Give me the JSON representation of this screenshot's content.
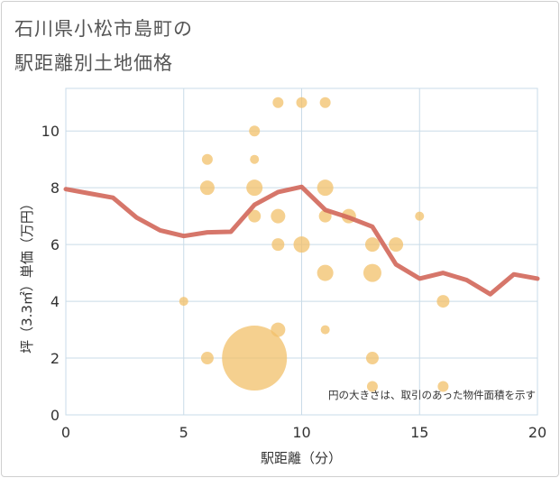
{
  "page": {
    "title_line1": "石川県小松市島町の",
    "title_line2": "駅距離別土地価格"
  },
  "chart_data": {
    "type": "scatter",
    "xlabel": "駅距離（分）",
    "ylabel": "坪（3.3㎡）単価（万円）",
    "note": "円の大きさは、取引のあった物件面積を示す",
    "xlim": [
      0,
      20
    ],
    "ylim": [
      0,
      11.5
    ],
    "x_ticks": [
      0,
      5,
      10,
      15,
      20
    ],
    "y_ticks": [
      0,
      2,
      4,
      6,
      8,
      10
    ],
    "grid": true,
    "colors": {
      "bubble": "#f2c06a",
      "line": "#d2675a",
      "grid": "#c9dbe8"
    },
    "bubbles": [
      {
        "x": 5,
        "y": 4.0,
        "size": 5
      },
      {
        "x": 6,
        "y": 9.0,
        "size": 6
      },
      {
        "x": 6,
        "y": 8.0,
        "size": 8
      },
      {
        "x": 6,
        "y": 2.0,
        "size": 7
      },
      {
        "x": 8,
        "y": 10.0,
        "size": 6
      },
      {
        "x": 8,
        "y": 9.0,
        "size": 5
      },
      {
        "x": 8,
        "y": 8.0,
        "size": 9
      },
      {
        "x": 8,
        "y": 7.0,
        "size": 7
      },
      {
        "x": 8,
        "y": 2.0,
        "size": 36
      },
      {
        "x": 9,
        "y": 11.0,
        "size": 6
      },
      {
        "x": 9,
        "y": 7.0,
        "size": 8
      },
      {
        "x": 9,
        "y": 6.0,
        "size": 7
      },
      {
        "x": 9,
        "y": 3.0,
        "size": 8
      },
      {
        "x": 10,
        "y": 11.0,
        "size": 6
      },
      {
        "x": 10,
        "y": 6.0,
        "size": 9
      },
      {
        "x": 11,
        "y": 11.0,
        "size": 6
      },
      {
        "x": 11,
        "y": 8.0,
        "size": 9
      },
      {
        "x": 11,
        "y": 7.0,
        "size": 7
      },
      {
        "x": 11,
        "y": 5.0,
        "size": 9
      },
      {
        "x": 11,
        "y": 3.0,
        "size": 5
      },
      {
        "x": 12,
        "y": 7.0,
        "size": 8
      },
      {
        "x": 13,
        "y": 6.0,
        "size": 8
      },
      {
        "x": 13,
        "y": 5.0,
        "size": 10
      },
      {
        "x": 13,
        "y": 2.0,
        "size": 7
      },
      {
        "x": 13,
        "y": 1.0,
        "size": 6
      },
      {
        "x": 14,
        "y": 6.0,
        "size": 8
      },
      {
        "x": 15,
        "y": 7.0,
        "size": 5
      },
      {
        "x": 16,
        "y": 4.0,
        "size": 7
      },
      {
        "x": 16,
        "y": 1.0,
        "size": 6
      }
    ],
    "line": {
      "x": [
        0,
        1,
        2,
        3,
        4,
        5,
        6,
        7,
        8,
        9,
        10,
        11,
        12,
        13,
        14,
        15,
        16,
        17,
        18,
        19,
        20
      ],
      "y": [
        7.95,
        7.8,
        7.65,
        6.95,
        6.5,
        6.3,
        6.43,
        6.45,
        7.4,
        7.85,
        8.03,
        7.22,
        6.95,
        6.63,
        5.3,
        4.8,
        5.0,
        4.75,
        4.25,
        4.95,
        4.8
      ]
    }
  }
}
